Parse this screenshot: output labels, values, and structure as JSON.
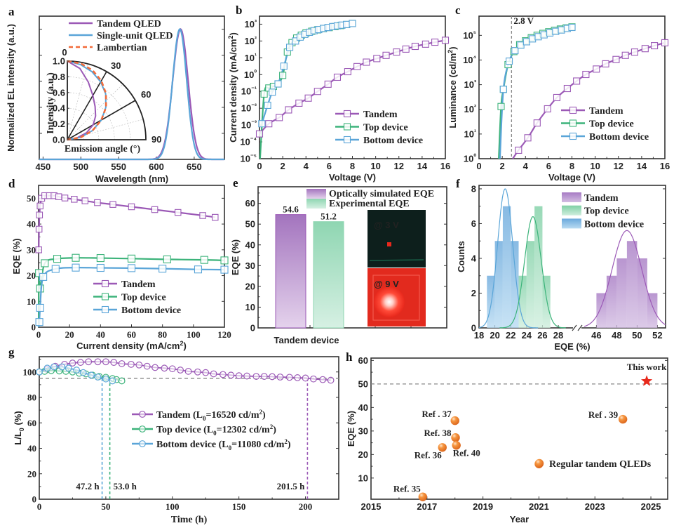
{
  "colors": {
    "tandem": "#9b59b6",
    "top": "#3cb37a",
    "bottom": "#5aa5d8",
    "lambertian": "#f26b3a",
    "orange": "#f0822a",
    "star": "#e8291c",
    "gray": "#888888"
  },
  "chart_data": [
    {
      "panel": "a",
      "type": "line",
      "xlabel": "Wavelength (nm)",
      "ylabel": "Normalized EL intensity (a.u.)",
      "xlim": [
        445,
        690
      ],
      "ylim": [
        0,
        1.1
      ],
      "xticks": [
        "450",
        "500",
        "550",
        "600",
        "650"
      ],
      "yticks": [
        "0.0",
        "0.2",
        "0.4",
        "0.6",
        "0.8",
        "1.0"
      ],
      "legend": [
        "Tandem QLED",
        "Single-unit QLED",
        "Lambertian"
      ],
      "series": [
        {
          "name": "Tandem QLED",
          "peak": 632,
          "fwhm": 24
        },
        {
          "name": "Single-unit QLED",
          "peak": 631,
          "fwhm": 22
        }
      ],
      "inset": {
        "type": "polar",
        "xlabel": "Emission angle (°)",
        "ylabel": "Intensity (a.u.)",
        "angle_ticks": [
          "0",
          "30",
          "60",
          "90"
        ],
        "r_ticks": [
          "0.0",
          "0.2",
          "0.4",
          "0.6",
          "0.8",
          "1.0"
        ],
        "series": [
          {
            "name": "Tandem QLED",
            "angles": [
              0,
              10,
              20,
              30,
              40,
              50,
              60,
              70,
              80,
              90
            ],
            "r": [
              1.0,
              0.92,
              0.78,
              0.65,
              0.55,
              0.47,
              0.38,
              0.26,
              0.12,
              0.0
            ]
          },
          {
            "name": "Single-unit QLED",
            "angles": [
              0,
              10,
              20,
              30,
              40,
              50,
              60,
              70,
              80,
              90
            ],
            "r": [
              1.0,
              0.97,
              0.92,
              0.85,
              0.76,
              0.64,
              0.5,
              0.34,
              0.17,
              0.0
            ]
          },
          {
            "name": "Lambertian",
            "angles": [
              0,
              10,
              20,
              30,
              40,
              50,
              60,
              70,
              80,
              90
            ],
            "r": [
              1.0,
              0.985,
              0.94,
              0.866,
              0.766,
              0.643,
              0.5,
              0.342,
              0.174,
              0.0
            ]
          }
        ]
      }
    },
    {
      "panel": "b",
      "type": "line",
      "xlabel": "Voltage (V)",
      "ylabel": "Current density (mA/cm²)",
      "yscale": "log",
      "xlim": [
        0,
        16
      ],
      "ylim": [
        1e-05,
        3000
      ],
      "xticks": [
        "0",
        "2",
        "4",
        "6",
        "8",
        "10",
        "12",
        "14",
        "16"
      ],
      "yticks": [
        "10⁻⁵",
        "10⁻⁴",
        "10⁻³",
        "10⁻²",
        "10⁻¹",
        "10⁰",
        "10¹",
        "10²",
        "10³"
      ],
      "legend": [
        "Tandem",
        "Top device",
        "Bottom device"
      ],
      "series": [
        {
          "name": "Tandem",
          "x": [
            0,
            0.8,
            1.7,
            2.5,
            3.4,
            4.2,
            5.0,
            5.9,
            6.7,
            7.6,
            8.4,
            9.2,
            10.1,
            10.9,
            11.8,
            12.6,
            13.4,
            14.3,
            15.1,
            16.0
          ],
          "y": [
            0.0003,
            0.0012,
            0.0028,
            0.008,
            0.02,
            0.04,
            0.1,
            0.27,
            0.7,
            1.5,
            3.0,
            5.5,
            9,
            14,
            22,
            33,
            48,
            65,
            85,
            110
          ]
        },
        {
          "name": "Top device",
          "x": [
            0.05,
            0.4,
            0.8,
            1.2,
            1.6,
            2.0,
            2.4,
            2.8,
            3.2,
            3.6,
            4.0,
            4.5,
            5.0,
            5.5,
            6.0,
            6.5,
            7.0,
            7.5,
            8.0
          ],
          "y": [
            1e-05,
            0.07,
            0.16,
            0.2,
            0.28,
            0.9,
            22,
            80,
            150,
            220,
            300,
            380,
            460,
            540,
            630,
            720,
            830,
            950,
            1100
          ]
        },
        {
          "name": "Bottom device",
          "x": [
            0.2,
            0.7,
            1.1,
            1.6,
            2.1,
            2.6,
            3.1,
            3.5,
            3.9,
            4.3,
            4.7,
            5.1,
            5.5,
            5.9,
            6.3,
            6.7,
            7.1,
            7.5,
            8.0
          ],
          "y": [
            0.0012,
            0.015,
            0.09,
            0.28,
            3.2,
            42,
            100,
            170,
            250,
            330,
            410,
            480,
            560,
            640,
            720,
            800,
            880,
            960,
            1100
          ]
        }
      ]
    },
    {
      "panel": "c",
      "type": "line",
      "xlabel": "Voltage (V)",
      "ylabel": "Luminance (cd/m²)",
      "yscale": "log",
      "xlim": [
        0,
        16
      ],
      "ylim": [
        1,
        600000
      ],
      "xticks": [
        "0",
        "2",
        "4",
        "6",
        "8",
        "10",
        "12",
        "14",
        "16"
      ],
      "yticks": [
        "10⁰",
        "10¹",
        "10²",
        "10³",
        "10⁴",
        "10⁵"
      ],
      "legend": [
        "Tandem",
        "Top device",
        "Bottom device"
      ],
      "annotation": {
        "text": "2.8 V",
        "x": 2.8
      },
      "series": [
        {
          "name": "Tandem",
          "x": [
            2.9,
            3.4,
            4.2,
            5.0,
            5.9,
            6.7,
            7.6,
            8.4,
            9.2,
            10.1,
            10.9,
            11.8,
            12.6,
            13.4,
            14.3,
            15.1,
            16.0
          ],
          "y": [
            1,
            2.2,
            7,
            28,
            105,
            300,
            700,
            1400,
            2600,
            4300,
            7000,
            10500,
            15500,
            21000,
            29000,
            38000,
            50000
          ]
        },
        {
          "name": "Top device",
          "x": [
            1.7,
            1.9,
            2.1,
            2.5,
            3.0,
            3.5,
            4.0,
            4.5,
            5.0,
            5.5,
            6.0,
            6.5,
            7.0,
            7.5,
            8.0
          ],
          "y": [
            1,
            130,
            650,
            6500,
            22000,
            42000,
            60000,
            80000,
            100000,
            120000,
            140000,
            160000,
            180000,
            200000,
            220000
          ]
        },
        {
          "name": "Bottom device",
          "x": [
            1.8,
            2.1,
            2.6,
            3.1,
            3.6,
            4.1,
            4.6,
            5.1,
            5.6,
            6.1,
            6.6,
            7.1,
            7.6,
            8.0
          ],
          "y": [
            1,
            650,
            9000,
            24000,
            40000,
            55000,
            72000,
            88000,
            105000,
            125000,
            145000,
            165000,
            190000,
            210000
          ]
        }
      ]
    },
    {
      "panel": "d",
      "type": "line",
      "xlabel": "Current density (mA/cm²)",
      "ylabel": "EQE (%)",
      "xlim": [
        0,
        120
      ],
      "ylim": [
        0,
        55
      ],
      "xticks": [
        "0",
        "20",
        "40",
        "60",
        "80",
        "100",
        "120"
      ],
      "yticks": [
        "0",
        "10",
        "20",
        "30",
        "40",
        "50"
      ],
      "legend": [
        "Tandem",
        "Top device",
        "Bottom device"
      ],
      "series": [
        {
          "name": "Tandem",
          "x": [
            0.1,
            0.3,
            0.6,
            1,
            2,
            4,
            7,
            10,
            13,
            17,
            23,
            30,
            38,
            48,
            60,
            75,
            90,
            106,
            114
          ],
          "y": [
            30,
            38,
            43.5,
            47,
            50,
            51,
            51,
            51,
            50.6,
            50.1,
            49.6,
            49.0,
            48.3,
            47.6,
            46.7,
            45.6,
            44.5,
            43.3,
            42.6
          ]
        },
        {
          "name": "Top device",
          "x": [
            0,
            0.3,
            1,
            4,
            12,
            24,
            40,
            60,
            83,
            107,
            120
          ],
          "y": [
            0,
            21,
            15,
            24.8,
            26.5,
            26.9,
            26.8,
            26.6,
            26.3,
            26.1,
            25.9
          ]
        },
        {
          "name": "Bottom device",
          "x": [
            0,
            0.5,
            1,
            3,
            11,
            24,
            40,
            60,
            80,
            103,
            120
          ],
          "y": [
            0,
            2,
            7.5,
            19.5,
            22.6,
            23.1,
            23.0,
            22.9,
            22.7,
            22.4,
            22.3
          ]
        }
      ]
    },
    {
      "panel": "e",
      "type": "bar",
      "xlabel": "Tandem device",
      "ylabel": "EQE (%)",
      "ylim": [
        0,
        68
      ],
      "yticks": [
        "0",
        "10",
        "20",
        "30",
        "40",
        "50",
        "60"
      ],
      "categories": [
        "Optically simulated EQE",
        "Experimental EQE"
      ],
      "values": [
        54.6,
        51.2
      ],
      "data_labels": [
        "54.6",
        "51.2"
      ],
      "legend": [
        "Optically simulated EQE",
        "Experimental EQE"
      ],
      "photos": [
        {
          "label": "@ 3 V"
        },
        {
          "label": "@ 9 V"
        }
      ]
    },
    {
      "panel": "f",
      "type": "bar",
      "subtype": "histogram",
      "xlabel": "EQE (%)",
      "ylabel": "Counts",
      "xlim_left": [
        18,
        29.5
      ],
      "xlim_right": [
        44.8,
        52.8
      ],
      "ylim": [
        0,
        8.2
      ],
      "xticks": [
        "18",
        "20",
        "22",
        "24",
        "26",
        "28",
        "46",
        "48",
        "50",
        "52"
      ],
      "yticks": [
        "0",
        "2",
        "4",
        "6",
        "8"
      ],
      "legend": [
        "Tandem",
        "Top device",
        "Bottom device"
      ],
      "series": [
        {
          "name": "Bottom device",
          "bin_width": 1.0,
          "bins": [
            19.5,
            20.5,
            21.5,
            22.5
          ],
          "counts": [
            3,
            5,
            7,
            5
          ],
          "fit_mean": 21.3,
          "fit_peak": 8.0,
          "fit_sigma": 0.95
        },
        {
          "name": "Top device",
          "bin_width": 1.0,
          "bins": [
            23.5,
            24.5,
            25.5,
            26.5
          ],
          "counts": [
            3,
            5,
            7,
            3
          ],
          "fit_mean": 24.8,
          "fit_peak": 6.4,
          "fit_sigma": 1.05
        },
        {
          "name": "Tandem",
          "bin_width": 1.0,
          "bins": [
            46.5,
            47.5,
            48.5,
            49.5,
            50.5,
            51.5
          ],
          "counts": [
            2,
            3,
            4,
            5,
            4,
            2
          ],
          "fit_mean": 49.0,
          "fit_peak": 5.6,
          "fit_sigma": 1.45
        }
      ]
    },
    {
      "panel": "g",
      "type": "line",
      "xlabel": "Time (h)",
      "ylabel": "L/L₀ (%)",
      "xlim": [
        0,
        225
      ],
      "ylim": [
        0,
        112
      ],
      "xticks": [
        "0",
        "50",
        "100",
        "150",
        "200"
      ],
      "yticks": [
        "0",
        "20",
        "40",
        "60",
        "80",
        "100"
      ],
      "reference_line": 95,
      "legend": [
        "Tandem (L₀=16520 cd/m²)",
        "Top device (L₀=12302 cd/m²)",
        "Bottom device (L₀=11080 cd/m²)"
      ],
      "annotations": [
        {
          "text": "47.2 h",
          "x": 47.2,
          "series": "Bottom device"
        },
        {
          "text": "53.0 h",
          "x": 53.0,
          "series": "Top device"
        },
        {
          "text": "201.5 h",
          "x": 201.5,
          "series": "Tandem"
        }
      ],
      "series": [
        {
          "name": "Tandem",
          "x": [
            0,
            6,
            12,
            19,
            25,
            31,
            37,
            44,
            50,
            56,
            62,
            69,
            75,
            81,
            87,
            94,
            100,
            106,
            112,
            119,
            125,
            131,
            138,
            144,
            150,
            156,
            163,
            169,
            175,
            181,
            188,
            194,
            200,
            206,
            213,
            219
          ],
          "y": [
            100,
            102,
            104.5,
            106,
            107,
            107.5,
            108,
            108,
            108,
            107.5,
            106.5,
            106,
            105.5,
            104.5,
            103.5,
            103,
            102.5,
            101.5,
            100.5,
            100,
            99.5,
            98.5,
            98,
            97.5,
            97,
            96.8,
            96.5,
            96.5,
            96.3,
            96,
            95.8,
            95.5,
            95.2,
            94.5,
            94,
            93.5
          ]
        },
        {
          "name": "Top device",
          "x": [
            0,
            4,
            9,
            15,
            20,
            25,
            30,
            35,
            40,
            45,
            50,
            55,
            58,
            62
          ],
          "y": [
            100,
            100.5,
            101,
            100.8,
            100.5,
            100,
            99,
            98.5,
            97.5,
            96.5,
            95.8,
            94.8,
            94,
            93
          ]
        },
        {
          "name": "Bottom device",
          "x": [
            0,
            6,
            11,
            17,
            22,
            28,
            33,
            39,
            44,
            50,
            55
          ],
          "y": [
            100,
            103,
            104,
            104,
            103,
            101.5,
            99.5,
            97.5,
            96,
            94.5,
            93
          ]
        }
      ]
    },
    {
      "panel": "h",
      "type": "scatter",
      "xlabel": "Year",
      "ylabel": "EQE (%)",
      "xlim": [
        2015,
        2025.6
      ],
      "ylim": [
        1,
        61
      ],
      "xticks": [
        "2015",
        "2017",
        "2019",
        "2021",
        "2023",
        "2025"
      ],
      "yticks": [
        "10",
        "20",
        "30",
        "40",
        "50",
        "60"
      ],
      "reference_line": 50,
      "legend": [
        "Regular tandem QLEDs"
      ],
      "points": [
        {
          "label": "Ref. 35",
          "x": 2016.85,
          "y": 2.0
        },
        {
          "label": "Ref. 36",
          "x": 2017.55,
          "y": 23.0
        },
        {
          "label": "Ref . 37",
          "x": 2018.0,
          "y": 34.4
        },
        {
          "label": "Ref. 38",
          "x": 2018.02,
          "y": 27.2
        },
        {
          "label": "Ref. 40",
          "x": 2018.05,
          "y": 23.9
        },
        {
          "label": "",
          "x": 2021.0,
          "y": 16.0
        },
        {
          "label": "Ref . 39",
          "x": 2024.0,
          "y": 35.0
        }
      ],
      "highlight": {
        "label": "This work",
        "x": 2024.85,
        "y": 51.2
      }
    }
  ],
  "panel_labels": [
    "a",
    "b",
    "c",
    "d",
    "e",
    "f",
    "g",
    "h"
  ]
}
